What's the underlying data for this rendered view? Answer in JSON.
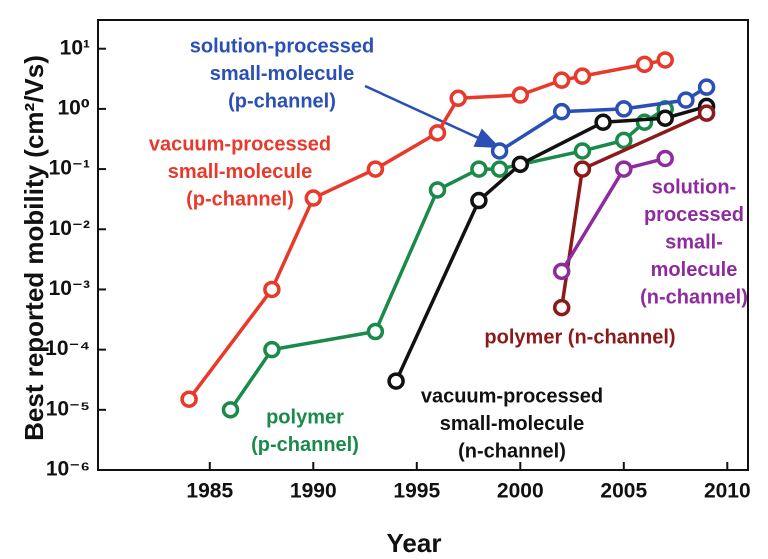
{
  "chart_data": {
    "type": "line",
    "xlabel": "Year",
    "ylabel": "Best reported mobility (cm²/Vs)",
    "log_y": true,
    "xlim": [
      1979.6,
      2011
    ],
    "xticks": [
      1985,
      1990,
      1995,
      2000,
      2005,
      2010
    ],
    "ylim": [
      1e-06,
      30
    ],
    "yticks": [
      {
        "value": 1e-06,
        "label": "10⁻⁶"
      },
      {
        "value": 1e-05,
        "label": "10⁻⁵"
      },
      {
        "value": 0.0001,
        "label": "10⁻⁴"
      },
      {
        "value": 0.001,
        "label": "10⁻³"
      },
      {
        "value": 0.01,
        "label": "10⁻²"
      },
      {
        "value": 0.1,
        "label": "10⁻¹"
      },
      {
        "value": 1,
        "label": "10⁰"
      },
      {
        "value": 10,
        "label": "10¹"
      }
    ],
    "series": [
      {
        "label_lines": [
          "vacuum-processed",
          "small-molecule",
          "(p-channel)"
        ],
        "color": "#e8392b",
        "x": [
          1984,
          1988,
          1990,
          1993,
          1996,
          1997,
          2000,
          2002,
          2003,
          2006,
          2007
        ],
        "values": [
          1.5e-05,
          0.001,
          0.033,
          0.1,
          0.4,
          1.5,
          1.7,
          3,
          3.5,
          5.5,
          6.5
        ]
      },
      {
        "label_lines": [
          "polymer",
          "(p-channel)"
        ],
        "color": "#1a8a4a",
        "x": [
          1986,
          1988,
          1993,
          1996,
          1998,
          1999,
          2003,
          2005,
          2006,
          2007
        ],
        "values": [
          1e-05,
          0.0001,
          0.0002,
          0.045,
          0.1,
          0.1,
          0.2,
          0.3,
          0.6,
          1
        ]
      },
      {
        "label_lines": [
          "solution-processed",
          "small-molecule",
          "(p-channel)"
        ],
        "color": "#2a4fb5",
        "x": [
          1999,
          2002,
          2005,
          2008,
          2009
        ],
        "values": [
          0.2,
          0.9,
          1.0,
          1.4,
          2.3
        ]
      },
      {
        "label_lines": [
          "vacuum-processed",
          "small-molecule",
          "(n-channel)"
        ],
        "color": "#111111",
        "x": [
          1994,
          1998,
          2000,
          2004,
          2007,
          2009
        ],
        "values": [
          3e-05,
          0.03,
          0.12,
          0.6,
          0.7,
          1.1
        ]
      },
      {
        "label_lines": [
          "polymer (n-channel)"
        ],
        "color": "#8b1a1a",
        "x": [
          2002,
          2003,
          2009
        ],
        "values": [
          0.0005,
          0.1,
          0.85
        ]
      },
      {
        "label_lines": [
          "solution-",
          "processed",
          "small-",
          "molecule",
          "(n-channel)"
        ],
        "color": "#8e2b9e",
        "x": [
          2002,
          2005,
          2007
        ],
        "values": [
          0.002,
          0.1,
          0.15
        ]
      }
    ]
  }
}
